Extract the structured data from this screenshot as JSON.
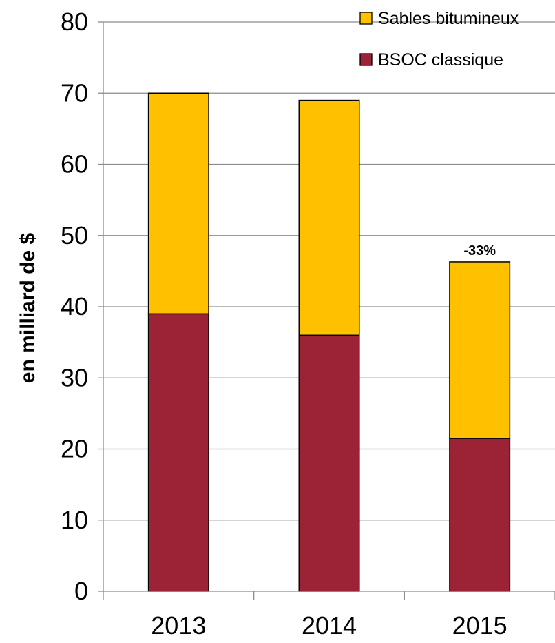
{
  "chart_data": {
    "type": "bar",
    "stacked": true,
    "categories": [
      "2013",
      "2014",
      "2015"
    ],
    "series": [
      {
        "name": "BSOC classique",
        "values": [
          39,
          36,
          21.5
        ],
        "color": "#9b2335"
      },
      {
        "name": "Sables bitumineux",
        "values": [
          31,
          33,
          24.8
        ],
        "color": "#ffc000"
      }
    ],
    "title": "",
    "xlabel": "",
    "ylabel": "en milliard de $",
    "ylim": [
      0,
      80
    ],
    "yticks": [
      0,
      10,
      20,
      30,
      40,
      50,
      60,
      70,
      80
    ],
    "grid": true,
    "legend": {
      "position": "top-right",
      "order": [
        "Sables bitumineux",
        "BSOC classique"
      ]
    },
    "annotations": [
      {
        "category": "2015",
        "text": "-33%"
      }
    ]
  }
}
